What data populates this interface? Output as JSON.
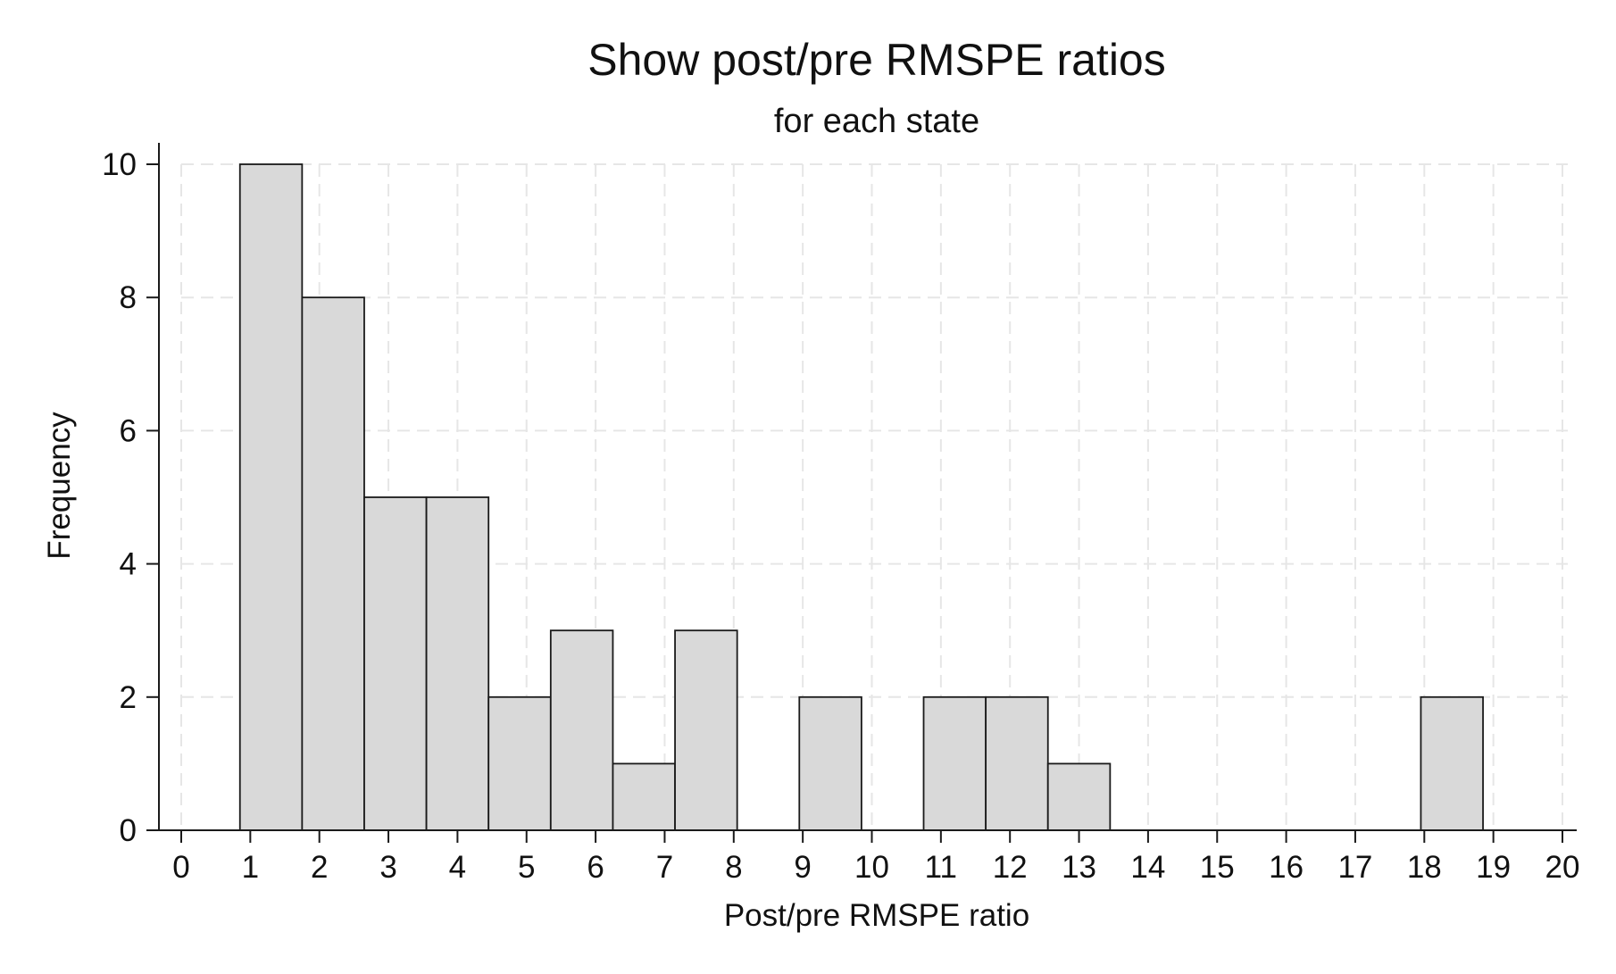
{
  "chart_data": {
    "type": "bar",
    "title": "Show post/pre RMSPE ratios",
    "subtitle": "for each state",
    "xlabel": "Post/pre RMSPE ratio",
    "ylabel": "Frequency",
    "xlim": [
      0,
      20
    ],
    "ylim": [
      0,
      10
    ],
    "xticks": [
      "0",
      "1",
      "2",
      "3",
      "4",
      "5",
      "6",
      "7",
      "8",
      "9",
      "10",
      "11",
      "12",
      "13",
      "14",
      "15",
      "16",
      "17",
      "18",
      "19",
      "20"
    ],
    "yticks": [
      "0",
      "2",
      "4",
      "6",
      "8",
      "10"
    ],
    "grid": true,
    "legend": "none",
    "bin_width": 0.9,
    "bins": [
      {
        "start": 0.85,
        "end": 1.75,
        "count": 10
      },
      {
        "start": 1.75,
        "end": 2.65,
        "count": 8
      },
      {
        "start": 2.65,
        "end": 3.55,
        "count": 5
      },
      {
        "start": 3.55,
        "end": 4.45,
        "count": 5
      },
      {
        "start": 4.45,
        "end": 5.35,
        "count": 2
      },
      {
        "start": 5.35,
        "end": 6.25,
        "count": 3
      },
      {
        "start": 6.25,
        "end": 7.15,
        "count": 1
      },
      {
        "start": 7.15,
        "end": 8.05,
        "count": 3
      },
      {
        "start": 8.05,
        "end": 8.95,
        "count": 0
      },
      {
        "start": 8.95,
        "end": 9.85,
        "count": 2
      },
      {
        "start": 9.85,
        "end": 10.75,
        "count": 0
      },
      {
        "start": 10.75,
        "end": 11.65,
        "count": 2
      },
      {
        "start": 11.65,
        "end": 12.55,
        "count": 2
      },
      {
        "start": 12.55,
        "end": 13.45,
        "count": 1
      },
      {
        "start": 13.45,
        "end": 14.35,
        "count": 0
      },
      {
        "start": 14.35,
        "end": 15.25,
        "count": 0
      },
      {
        "start": 15.25,
        "end": 16.15,
        "count": 0
      },
      {
        "start": 16.15,
        "end": 17.05,
        "count": 0
      },
      {
        "start": 17.05,
        "end": 17.95,
        "count": 0
      },
      {
        "start": 17.95,
        "end": 18.85,
        "count": 2
      }
    ],
    "colors": {
      "bar_fill": "#d9d9d9",
      "bar_stroke": "#1a1a1a",
      "grid": "#e6e6e6",
      "axis": "#1a1a1a"
    }
  }
}
